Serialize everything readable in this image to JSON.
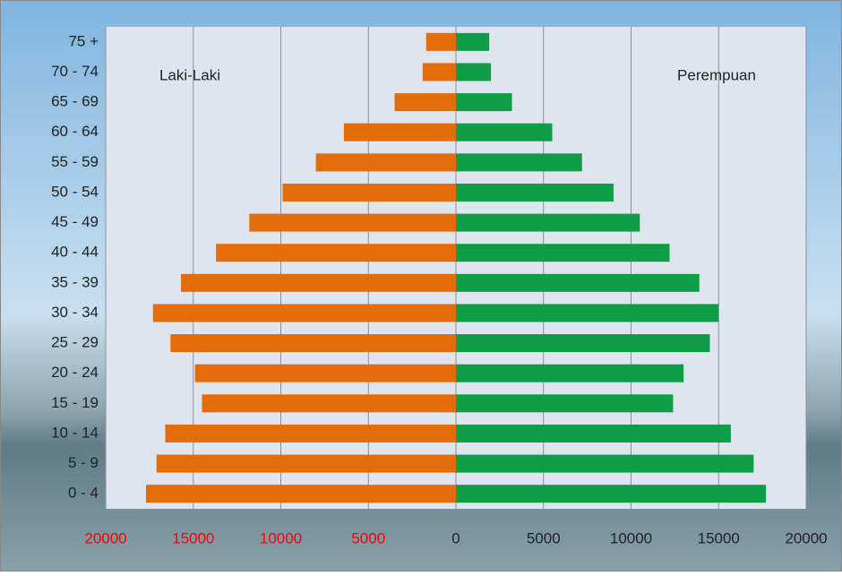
{
  "chart_data": {
    "type": "pyramid",
    "categories": [
      "0 - 4",
      "5 - 9",
      "10 - 14",
      "15 - 19",
      "20 - 24",
      "25 - 29",
      "30 - 34",
      "35 - 39",
      "40 - 44",
      "45 - 49",
      "50 - 54",
      "55 - 59",
      "60 - 64",
      "65 - 69",
      "70 - 74",
      "75 +"
    ],
    "series": [
      {
        "name": "Laki-Laki",
        "color": "#e46c0a",
        "values": [
          -17700,
          -17100,
          -16600,
          -14500,
          -14900,
          -16300,
          -17300,
          -15700,
          -13700,
          -11800,
          -9900,
          -8000,
          -6400,
          -3500,
          -1900,
          -1700
        ]
      },
      {
        "name": "Perempuan",
        "color": "#0f9d48",
        "values": [
          17700,
          17000,
          15700,
          12400,
          13000,
          14500,
          15000,
          13900,
          12200,
          10500,
          9000,
          7200,
          5500,
          3200,
          2000,
          1900
        ]
      }
    ],
    "xlim": [
      -20000,
      20000
    ],
    "xticks": [
      {
        "value": -20000,
        "label": "20000"
      },
      {
        "value": -15000,
        "label": "15000"
      },
      {
        "value": -10000,
        "label": "10000"
      },
      {
        "value": -5000,
        "label": "5000"
      },
      0,
      5000,
      10000,
      15000,
      20000
    ],
    "negative_tick_color": "#ff0000",
    "grid": true
  }
}
